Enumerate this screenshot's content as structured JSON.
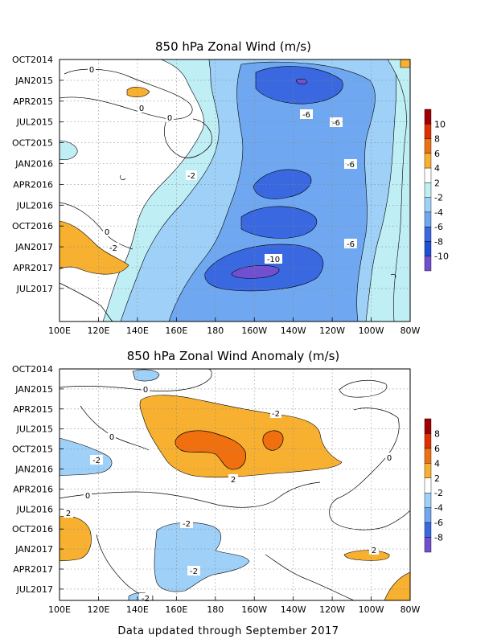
{
  "footer": "Data updated through September 2017",
  "chart_data": [
    {
      "type": "heatmap",
      "title": "850 hPa Zonal Wind (m/s)",
      "x_ticks": [
        "100E",
        "120E",
        "140E",
        "160E",
        "180",
        "160W",
        "140W",
        "120W",
        "100W",
        "80W"
      ],
      "y_ticks": [
        "OCT2014",
        "JAN2015",
        "APR2015",
        "JUL2015",
        "OCT2015",
        "JAN2016",
        "APR2016",
        "JUL2016",
        "OCT2016",
        "JAN2017",
        "APR2017",
        "JUL2017"
      ],
      "colorbar": {
        "labels": [
          "10",
          "8",
          "6",
          "4",
          "2",
          "-2",
          "-4",
          "-6",
          "-8",
          "-10"
        ],
        "colors": [
          "#a00000",
          "#e03000",
          "#f07010",
          "#f8b030",
          "#ffffff",
          "#bfeef5",
          "#9fd0f8",
          "#6fa8f0",
          "#3a68e0",
          "#2050d8",
          "#7050d0"
        ]
      },
      "contour_labels": [
        "0",
        "0",
        "0",
        "-2",
        "-6",
        "-6",
        "-6",
        "-6",
        "-2",
        "-10",
        "0"
      ]
    },
    {
      "type": "heatmap",
      "title": "850 hPa Zonal Wind Anomaly (m/s)",
      "x_ticks": [
        "100E",
        "120E",
        "140E",
        "160E",
        "180",
        "160W",
        "140W",
        "120W",
        "100W",
        "80W"
      ],
      "y_ticks": [
        "OCT2014",
        "JAN2015",
        "APR2015",
        "JUL2015",
        "OCT2015",
        "JAN2016",
        "APR2016",
        "JUL2016",
        "OCT2016",
        "JAN2017",
        "APR2017",
        "JUL2017"
      ],
      "colorbar": {
        "labels": [
          "8",
          "6",
          "4",
          "2",
          "-2",
          "-4",
          "-6",
          "-8"
        ],
        "colors": [
          "#a00000",
          "#e03000",
          "#f07010",
          "#f8b030",
          "#ffffff",
          "#9fd0f8",
          "#6fa8f0",
          "#3a68e0",
          "#7050d0"
        ]
      },
      "contour_labels": [
        "0",
        "-2",
        "-2",
        "0",
        "0",
        "-2",
        "2",
        "0",
        "2",
        "-2",
        "-2",
        "2"
      ]
    }
  ]
}
